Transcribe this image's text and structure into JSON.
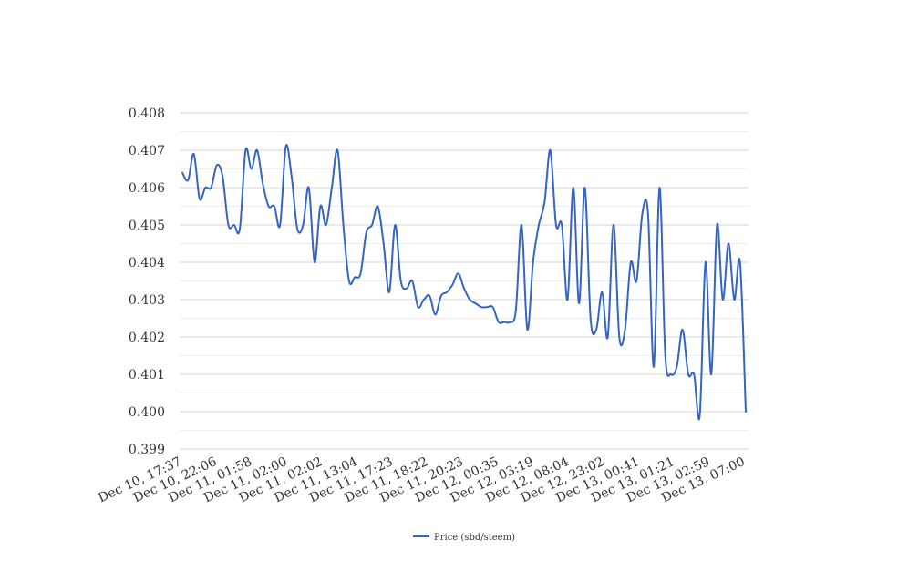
{
  "chart_data": {
    "type": "line",
    "title": "",
    "xlabel": "",
    "ylabel": "",
    "ylim": [
      0.399,
      0.408
    ],
    "y_ticks": [
      "0.399",
      "0.400",
      "0.401",
      "0.402",
      "0.403",
      "0.404",
      "0.405",
      "0.406",
      "0.407",
      "0.408"
    ],
    "x_tick_labels": [
      "Dec 10, 17:37",
      "Dec 10, 22:06",
      "Dec 11, 01:58",
      "Dec 11, 02:00",
      "Dec 11, 02:02",
      "Dec 11, 13:04",
      "Dec 11, 17:23",
      "Dec 11, 18:22",
      "Dec 11, 20:23",
      "Dec 12, 00:35",
      "Dec 12, 03:19",
      "Dec 12, 08:04",
      "Dec 12, 23:02",
      "Dec 13, 00:41",
      "Dec 13, 01:21",
      "Dec 13, 02:59",
      "Dec 13, 07:00"
    ],
    "grid": true,
    "minor_grid": true,
    "legend": "bottom-center",
    "series": [
      {
        "name": "Price (sbd/steem)",
        "color": "#3565c0",
        "values": [
          0.4064,
          0.4062,
          0.4069,
          0.4057,
          0.406,
          0.406,
          0.4066,
          0.4063,
          0.405,
          0.405,
          0.4049,
          0.407,
          0.4065,
          0.407,
          0.4061,
          0.4055,
          0.4055,
          0.405,
          0.4071,
          0.4063,
          0.4049,
          0.405,
          0.406,
          0.404,
          0.4055,
          0.405,
          0.406,
          0.407,
          0.405,
          0.4035,
          0.4036,
          0.4037,
          0.4048,
          0.405,
          0.4055,
          0.4045,
          0.4032,
          0.405,
          0.4035,
          0.4033,
          0.4035,
          0.4028,
          0.403,
          0.4031,
          0.4026,
          0.4031,
          0.4032,
          0.4034,
          0.4037,
          0.4033,
          0.403,
          0.4029,
          0.4028,
          0.4028,
          0.4028,
          0.4024,
          0.4024,
          0.4024,
          0.4027,
          0.405,
          0.4022,
          0.404,
          0.405,
          0.4056,
          0.407,
          0.405,
          0.405,
          0.403,
          0.406,
          0.4029,
          0.406,
          0.4025,
          0.4022,
          0.4032,
          0.402,
          0.405,
          0.402,
          0.4022,
          0.404,
          0.4035,
          0.4053,
          0.4053,
          0.4012,
          0.406,
          0.4015,
          0.401,
          0.4012,
          0.4022,
          0.401,
          0.401,
          0.3999,
          0.404,
          0.401,
          0.405,
          0.403,
          0.4045,
          0.403,
          0.404,
          0.4
        ]
      }
    ]
  }
}
